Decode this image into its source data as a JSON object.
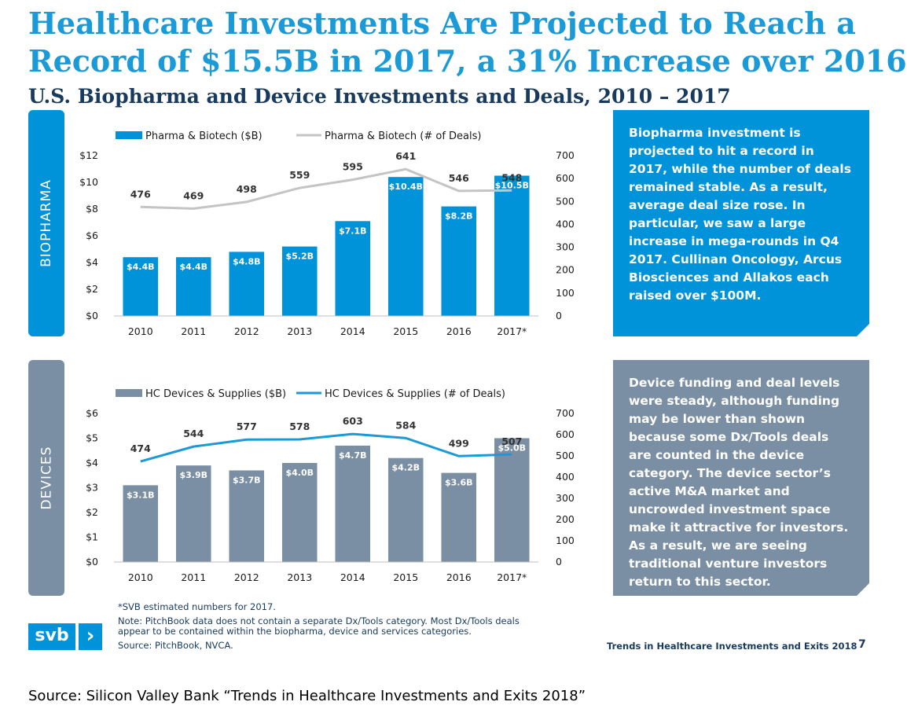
{
  "title_line1": "Healthcare Investments Are Projected to Reach a",
  "title_line2": "Record of $15.5B in 2017, a 31% Increase over 2016",
  "subtitle": "U.S. Biopharma and Device Investments and Deals, 2010 – 2017",
  "tabs": {
    "biopharma": "BIOPHARMA",
    "devices": "DEVICES"
  },
  "biopharma_text": "Biopharma investment is projected to hit a record in 2017, while the number of deals remained stable. As a result, average deal size rose. In particular, we saw a large increase in mega-rounds in Q4 2017. Cullinan Oncology, Arcus Biosciences and Allakos each raised over $100M.",
  "devices_text": "Device funding and deal levels were steady, although funding may be lower than shown because some Dx/Tools deals are counted in the device category. The device sector’s active M&A market and uncrowded investment space make it attractive for investors. As a result, we are seeing traditional venture investors return to this sector.",
  "notes": {
    "estimated": "*SVB estimated numbers for 2017.",
    "pitchbook": "Note: PitchBook data does not contain a separate Dx/Tools category. Most Dx/Tools deals appear to be contained within the biopharma, device and services categories.",
    "source": "Source: PitchBook, NVCA."
  },
  "logo": {
    "text": "svb",
    "chevron": "›"
  },
  "footer_title": "Trends in Healthcare Investments and Exits 2018",
  "page_number": "7",
  "source_line": "Source: Silicon Valley Bank “Trends in Healthcare Investments and Exits 2018”",
  "colors": {
    "biopharma": "#0093d9",
    "devices": "#7a8fa4",
    "bio_line": "#c4c4c4",
    "dev_line": "#1a9ad6",
    "title": "#1a9ad6",
    "dark": "#173a5e"
  },
  "chart_data": [
    {
      "type": "bar",
      "categories": [
        "2010",
        "2011",
        "2012",
        "2013",
        "2014",
        "2015",
        "2016",
        "2017*"
      ],
      "series": [
        {
          "name": "Pharma & Biotech ($B)",
          "type": "bar",
          "axis": "left",
          "values": [
            4.4,
            4.4,
            4.8,
            5.2,
            7.1,
            10.4,
            8.2,
            10.5
          ],
          "labels": [
            "$4.4B",
            "$4.4B",
            "$4.8B",
            "$5.2B",
            "$7.1B",
            "$10.4B",
            "$8.2B",
            "$10.5B"
          ]
        },
        {
          "name": "Pharma & Biotech (# of Deals)",
          "type": "line",
          "axis": "right",
          "values": [
            476,
            469,
            498,
            559,
            595,
            641,
            546,
            548
          ]
        }
      ],
      "y_left": {
        "min": 0,
        "max": 12,
        "ticks": [
          "$0",
          "$2",
          "$4",
          "$6",
          "$8",
          "$10",
          "$12"
        ]
      },
      "y_right": {
        "min": 0,
        "max": 700,
        "ticks": [
          "0",
          "100",
          "200",
          "300",
          "400",
          "500",
          "600",
          "700"
        ]
      },
      "legend": "top"
    },
    {
      "type": "bar",
      "categories": [
        "2010",
        "2011",
        "2012",
        "2013",
        "2014",
        "2015",
        "2016",
        "2017*"
      ],
      "series": [
        {
          "name": "HC Devices & Supplies ($B)",
          "type": "bar",
          "axis": "left",
          "values": [
            3.1,
            3.9,
            3.7,
            4.0,
            4.7,
            4.2,
            3.6,
            5.0
          ],
          "labels": [
            "$3.1B",
            "$3.9B",
            "$3.7B",
            "$4.0B",
            "$4.7B",
            "$4.2B",
            "$3.6B",
            "$5.0B"
          ]
        },
        {
          "name": "HC Devices & Supplies (# of Deals)",
          "type": "line",
          "axis": "right",
          "values": [
            474,
            544,
            577,
            578,
            603,
            584,
            499,
            507
          ]
        }
      ],
      "y_left": {
        "min": 0,
        "max": 6,
        "ticks": [
          "$0",
          "$1",
          "$2",
          "$3",
          "$4",
          "$5",
          "$6"
        ]
      },
      "y_right": {
        "min": 0,
        "max": 700,
        "ticks": [
          "0",
          "100",
          "200",
          "300",
          "400",
          "500",
          "600",
          "700"
        ]
      },
      "legend": "top"
    }
  ]
}
